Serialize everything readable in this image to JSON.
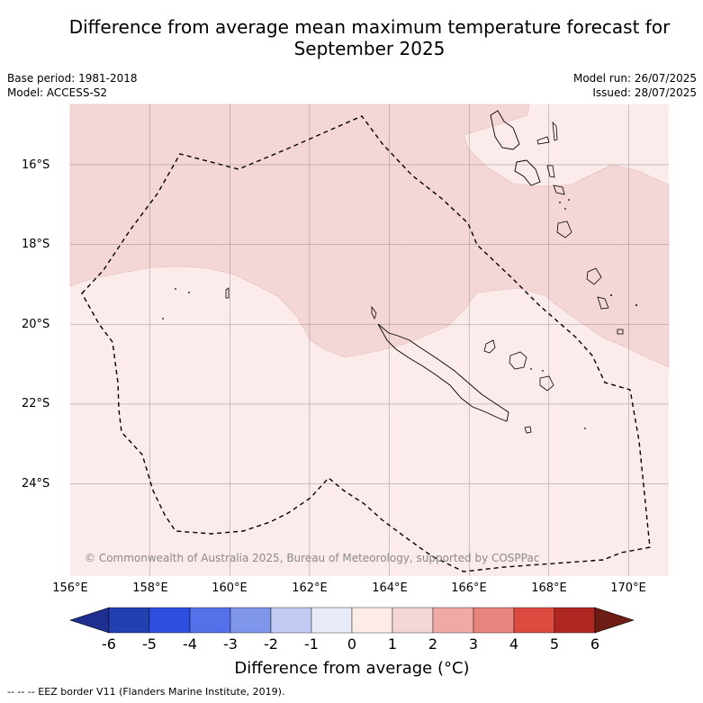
{
  "title": "Difference from average mean maximum temperature forecast for September 2025",
  "meta": {
    "base_period": "Base period: 1981-2018",
    "model": "Model: ACCESS-S2",
    "model_run": "Model run: 26/07/2025",
    "issued": "Issued: 28/07/2025"
  },
  "map": {
    "lat_labels": [
      "16°S",
      "18°S",
      "20°S",
      "22°S",
      "24°S"
    ],
    "lon_labels": [
      "156°E",
      "158°E",
      "160°E",
      "162°E",
      "164°E",
      "166°E",
      "168°E",
      "170°E"
    ],
    "copyright": "© Commonwealth of Australia 2025, Bureau of Meteorology, supported by COSPPac",
    "regions": [
      {
        "category": "1 to 2",
        "color": "#f5d6d6"
      },
      {
        "category": "0 to 1",
        "color": "#fbebea"
      }
    ]
  },
  "colorbar": {
    "ticks": [
      "-6",
      "-5",
      "-4",
      "-3",
      "-2",
      "-1",
      "0",
      "1",
      "2",
      "3",
      "4",
      "5",
      "6"
    ],
    "colors": [
      "#1f2f8f",
      "#2240b0",
      "#2f4fe0",
      "#5570e8",
      "#8096ea",
      "#c2c9f2",
      "#e8ebfa",
      "#fdebe8",
      "#f5d6d6",
      "#efaaa6",
      "#e8857e",
      "#dc4b3f",
      "#ae2722",
      "#6e1d16"
    ],
    "label": "Difference from average (°C)"
  },
  "legend": {
    "eez": "--  --  -- EEZ border V11 (Flanders Marine Institute, 2019)."
  }
}
